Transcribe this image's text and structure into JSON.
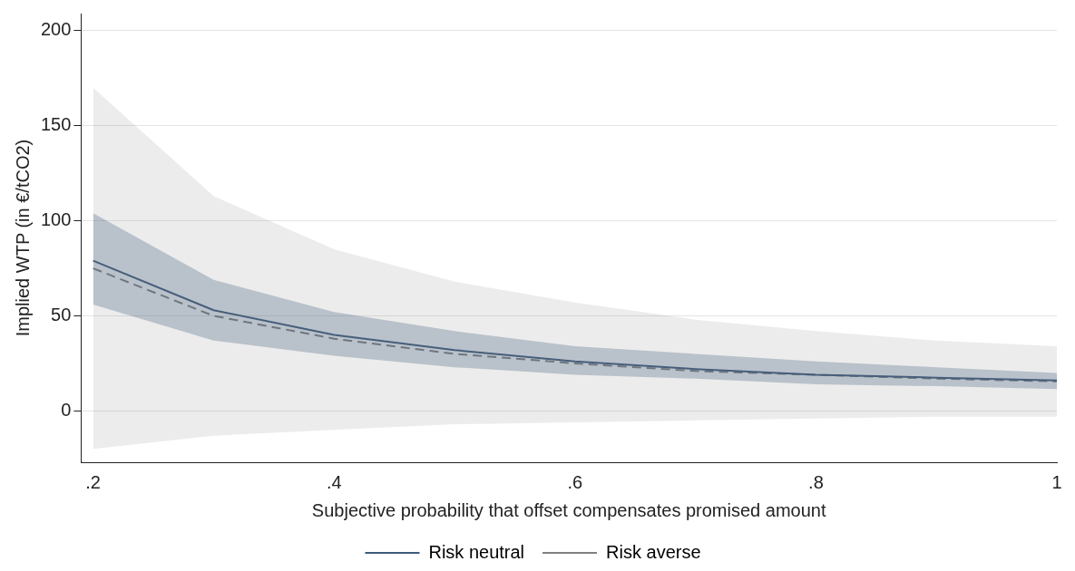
{
  "chart_data": {
    "type": "line",
    "xlabel": "Subjective probability that offset compensates promised amount",
    "ylabel": "Implied WTP (in €/tCO2)",
    "x": [
      0.2,
      0.3,
      0.4,
      0.5,
      0.6,
      0.7,
      0.8,
      0.9,
      1.0
    ],
    "series": [
      {
        "name": "Risk neutral",
        "color": "#3d5a7a",
        "line_style": "solid",
        "values": [
          79,
          53,
          40,
          32,
          26,
          22,
          19,
          17.5,
          16
        ],
        "lower": [
          56,
          37,
          29,
          23,
          19,
          17,
          14,
          13,
          11.5
        ],
        "upper": [
          104,
          69,
          52,
          42,
          34,
          30,
          26,
          23,
          20
        ]
      },
      {
        "name": "Risk averse",
        "color": "#808080",
        "line_style": "dashed",
        "values": [
          75,
          50,
          38,
          30,
          25,
          21,
          19,
          17,
          15.5
        ],
        "lower": [
          -20,
          -13,
          -10,
          -7,
          -6,
          -5,
          -4,
          -3,
          -3
        ],
        "upper": [
          170,
          113,
          85,
          68,
          57,
          48,
          42,
          37,
          34
        ]
      }
    ],
    "xlim": [
      0.19,
      1.0
    ],
    "xticks": [
      {
        "value": 0.2,
        "label": ".2"
      },
      {
        "value": 0.4,
        "label": ".4"
      },
      {
        "value": 0.6,
        "label": ".6"
      },
      {
        "value": 0.8,
        "label": ".8"
      },
      1
    ],
    "ylim": [
      -27,
      209
    ],
    "yticks": [
      0,
      50,
      100,
      150,
      200
    ],
    "grid": "y",
    "legend": "bottom",
    "marker": "none"
  }
}
